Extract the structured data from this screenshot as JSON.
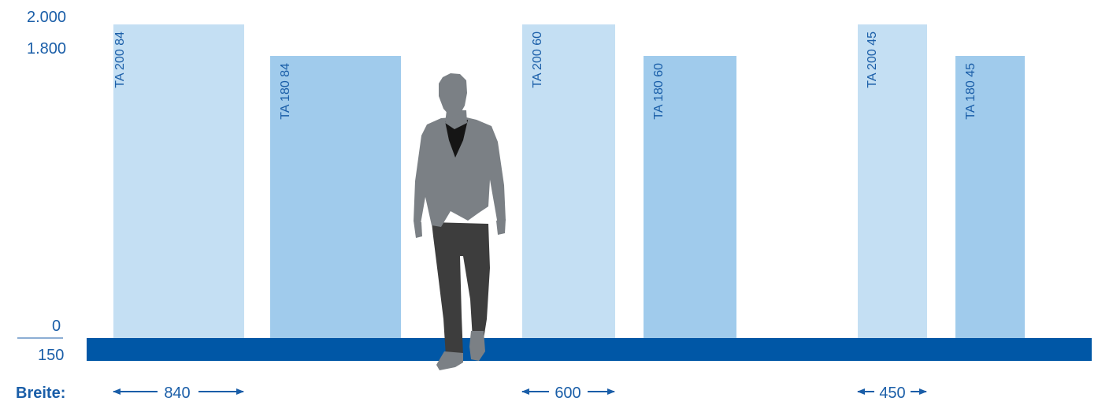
{
  "scale": {
    "tick_top": "2.000",
    "tick_mid": "1.800",
    "tick_zero": "0",
    "tick_base": "150"
  },
  "width_label": "Breite:",
  "groups": [
    {
      "width_value": "840",
      "panels": [
        {
          "label": "TA 200 84",
          "height": 2000,
          "width": 840,
          "color": "#c4dff3"
        },
        {
          "label": "TA 180 84",
          "height": 1800,
          "width": 840,
          "color": "#a0cbec"
        }
      ]
    },
    {
      "width_value": "600",
      "panels": [
        {
          "label": "TA 200 60",
          "height": 2000,
          "width": 600,
          "color": "#c4dff3"
        },
        {
          "label": "TA 180 60",
          "height": 1800,
          "width": 600,
          "color": "#a0cbec"
        }
      ]
    },
    {
      "width_value": "450",
      "panels": [
        {
          "label": "TA 200 45",
          "height": 2000,
          "width": 450,
          "color": "#c4dff3"
        },
        {
          "label": "TA 180 45",
          "height": 1800,
          "width": 450,
          "color": "#a0cbec"
        }
      ]
    }
  ],
  "colors": {
    "text_blue": "#1a5ea8",
    "base_bar": "#0057a6",
    "person_body": "#7b8085",
    "person_pants": "#3d3d3d",
    "person_shirt": "#151515"
  },
  "icons": {
    "person": "person-silhouette-icon",
    "arrow_left": "arrow-left-icon",
    "arrow_right": "arrow-right-icon"
  }
}
